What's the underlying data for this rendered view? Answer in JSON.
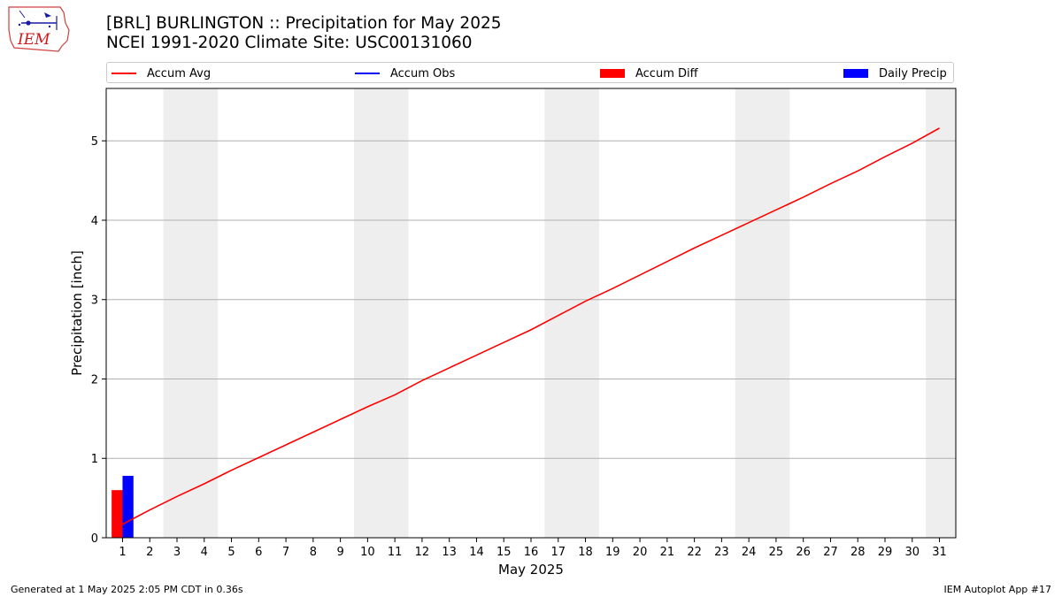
{
  "header": {
    "title_line1": "[BRL] BURLINGTON :: Precipitation for May 2025",
    "title_line2": "NCEI 1991-2020 Climate Site: USC00131060",
    "logo_text": "IEM"
  },
  "legend": {
    "items": [
      {
        "label": "Accum Avg",
        "kind": "line",
        "color": "#ff0000"
      },
      {
        "label": "Accum Obs",
        "kind": "line",
        "color": "#0000ff"
      },
      {
        "label": "Accum Diff",
        "kind": "box",
        "color": "#ff0000"
      },
      {
        "label": "Daily Precip",
        "kind": "box",
        "color": "#0000ff"
      }
    ],
    "placement": "top"
  },
  "footer": {
    "left": "Generated at 1 May 2025 2:05 PM CDT in 0.36s",
    "right": "IEM Autoplot App #17"
  },
  "chart_data": {
    "type": "line",
    "title": "[BRL] BURLINGTON :: Precipitation for May 2025",
    "subtitle": "NCEI 1991-2020 Climate Site: USC00131060",
    "xlabel": "May 2025",
    "ylabel": "Precipitation [inch]",
    "xlim": [
      0.4,
      31.6
    ],
    "ylim": [
      0,
      5.66
    ],
    "yticks": [
      0,
      1,
      2,
      3,
      4,
      5
    ],
    "xticks": [
      1,
      2,
      3,
      4,
      5,
      6,
      7,
      8,
      9,
      10,
      11,
      12,
      13,
      14,
      15,
      16,
      17,
      18,
      19,
      20,
      21,
      22,
      23,
      24,
      25,
      26,
      27,
      28,
      29,
      30,
      31
    ],
    "grid": "y",
    "weekend_shading": [
      [
        2.5,
        4.5
      ],
      [
        9.5,
        11.5
      ],
      [
        16.5,
        18.5
      ],
      [
        23.5,
        25.5
      ],
      [
        30.5,
        31.6
      ]
    ],
    "series": [
      {
        "name": "Accum Avg",
        "kind": "line",
        "color": "#ff0000",
        "x": [
          1,
          2,
          3,
          4,
          5,
          6,
          7,
          8,
          9,
          10,
          11,
          12,
          13,
          14,
          15,
          16,
          17,
          18,
          19,
          20,
          21,
          22,
          23,
          24,
          25,
          26,
          27,
          28,
          29,
          30,
          31
        ],
        "values": [
          0.17,
          0.35,
          0.52,
          0.68,
          0.85,
          1.01,
          1.17,
          1.33,
          1.49,
          1.65,
          1.8,
          1.98,
          2.14,
          2.3,
          2.46,
          2.62,
          2.8,
          2.98,
          3.14,
          3.31,
          3.48,
          3.65,
          3.81,
          3.97,
          4.13,
          4.29,
          4.46,
          4.62,
          4.8,
          4.97,
          5.16
        ]
      },
      {
        "name": "Accum Obs",
        "kind": "line",
        "color": "#0000ff",
        "x": [
          1
        ],
        "values": [
          0.78
        ]
      },
      {
        "name": "Accum Diff",
        "kind": "bar",
        "color": "#ff0000",
        "x": [
          1
        ],
        "values": [
          0.6
        ]
      },
      {
        "name": "Daily Precip",
        "kind": "bar",
        "color": "#0000ff",
        "x": [
          1
        ],
        "values": [
          0.78
        ]
      }
    ]
  }
}
